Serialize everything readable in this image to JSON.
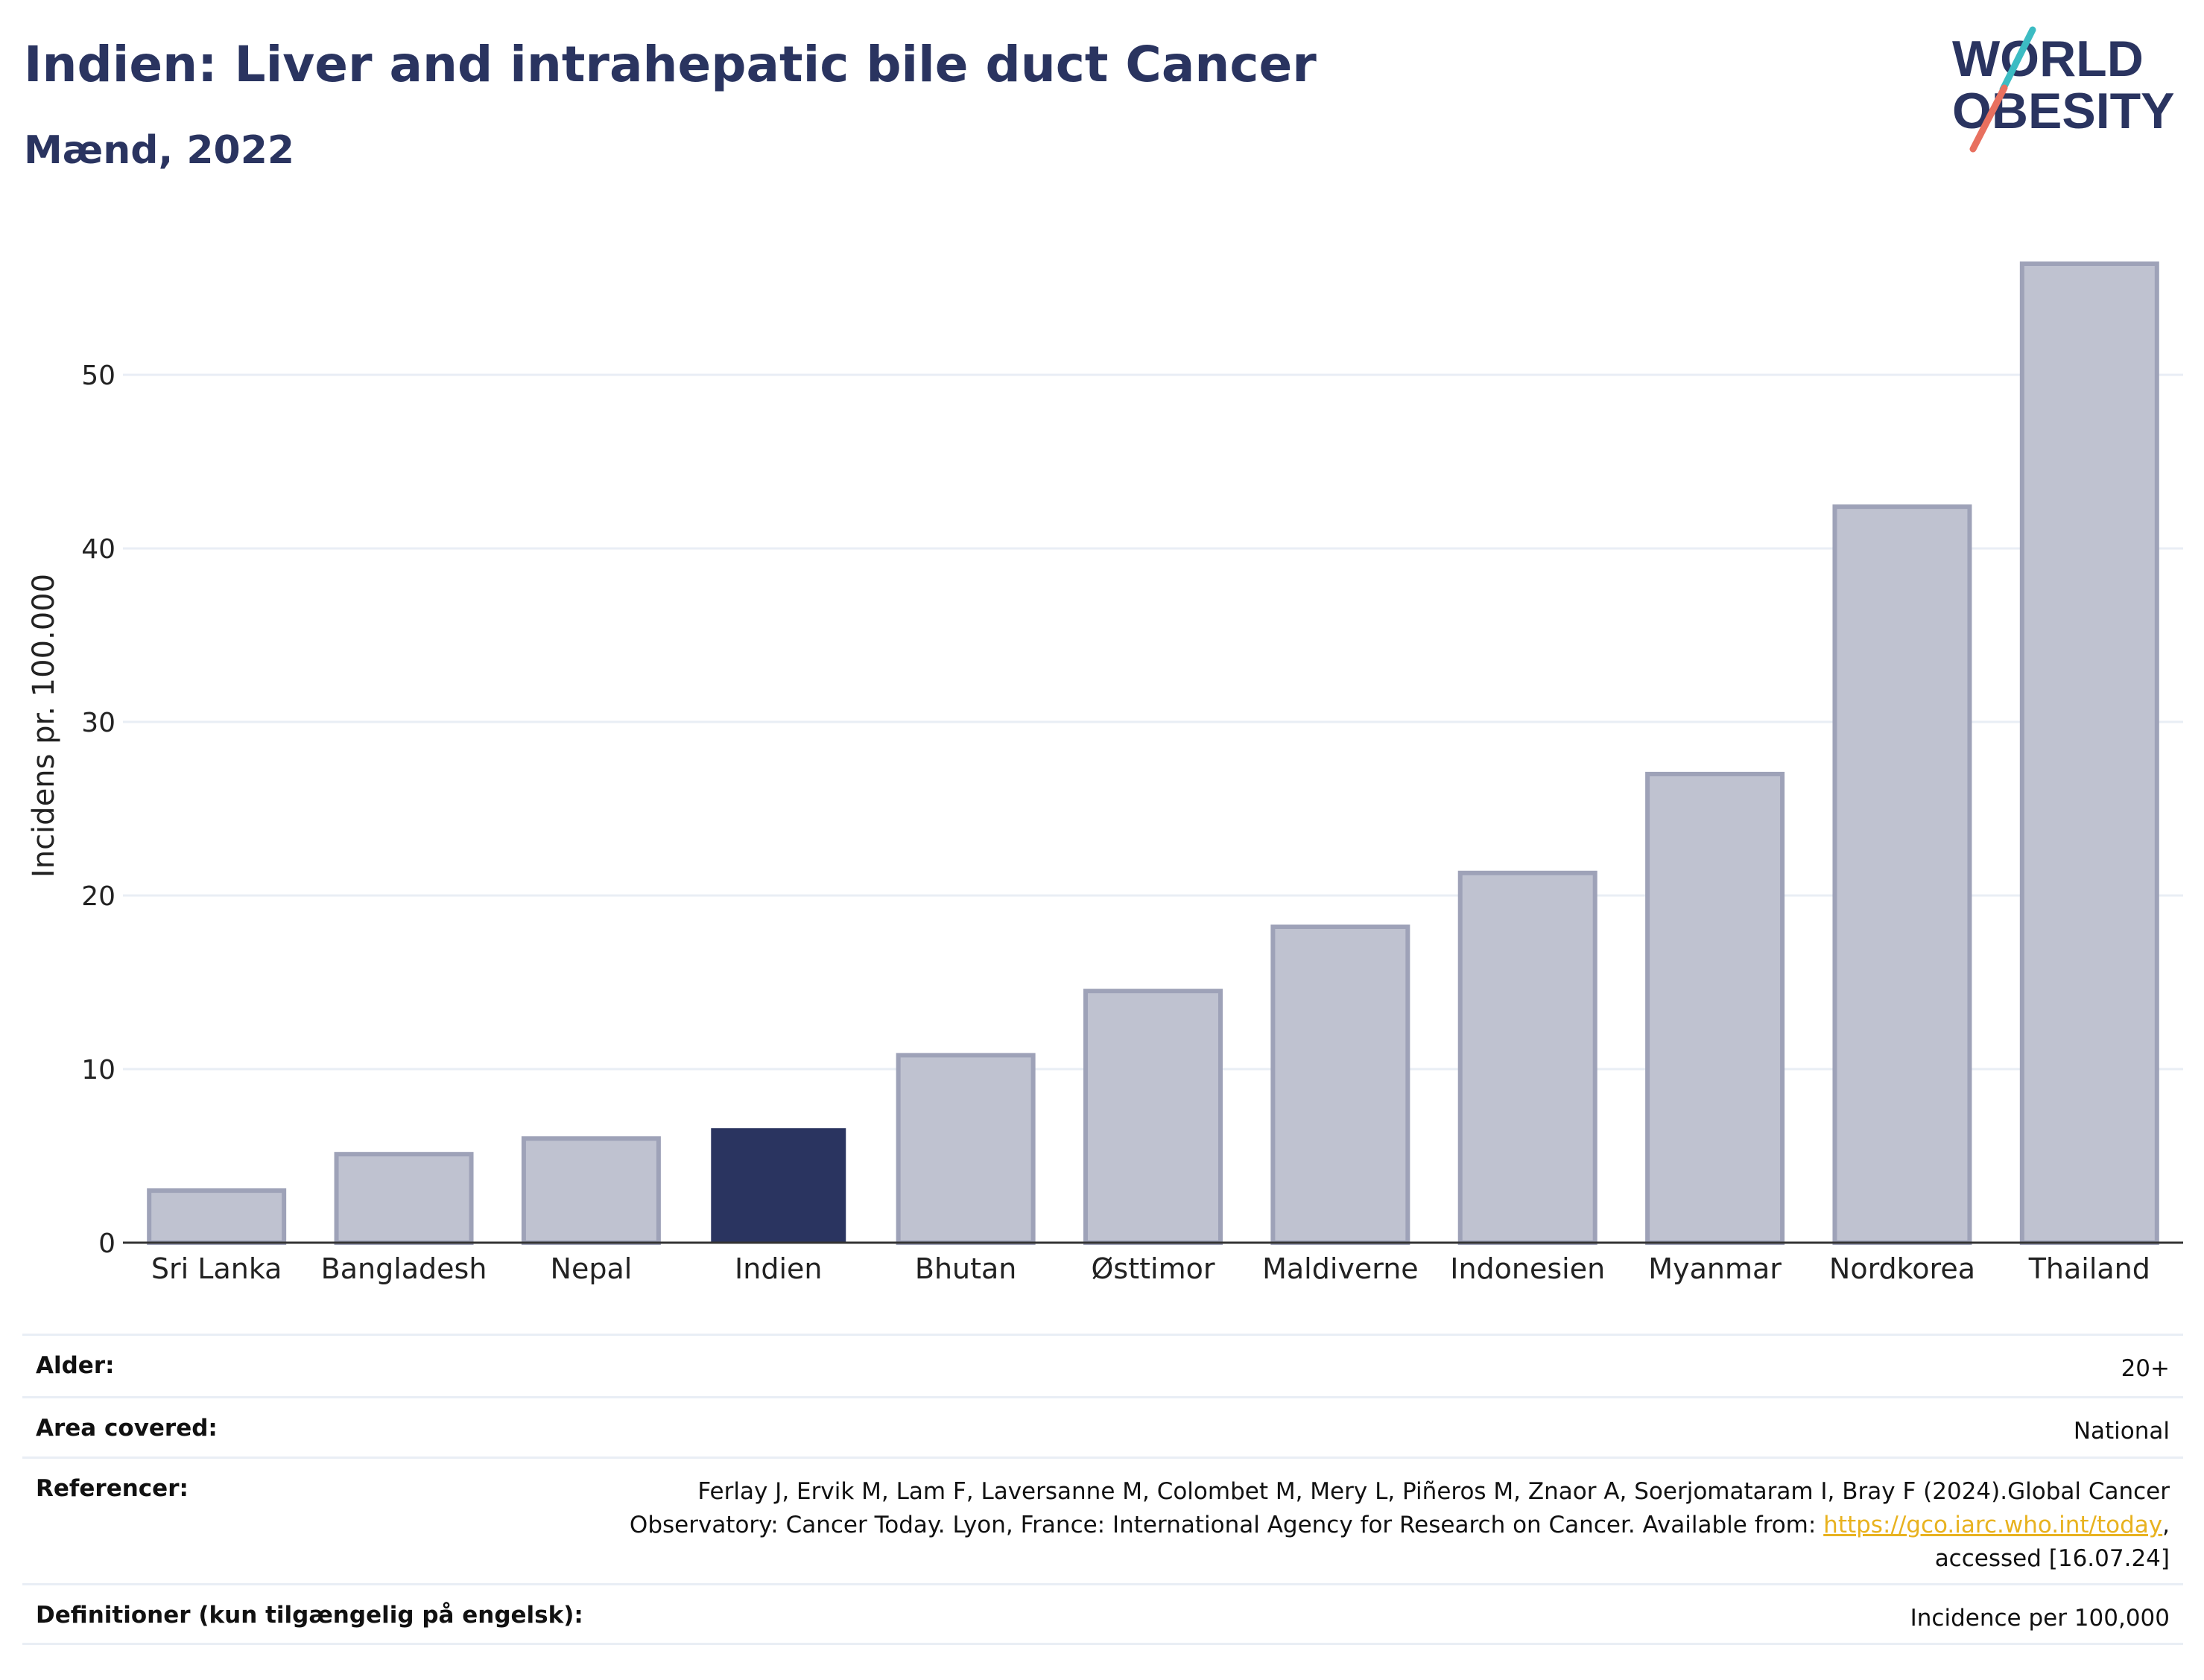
{
  "title": "Indien: Liver and intrahepatic bile duct Cancer",
  "subtitle": "Mænd, 2022",
  "logo": {
    "line1": "WORLD",
    "line2": "OBESITY",
    "colors": {
      "text": "#2a3460",
      "teal": "#3cbcc3",
      "coral": "#e8705f"
    }
  },
  "chart_data": {
    "type": "bar",
    "categories": [
      "Sri Lanka",
      "Bangladesh",
      "Nepal",
      "Indien",
      "Bhutan",
      "Østtimor",
      "Maldiverne",
      "Indonesien",
      "Myanmar",
      "Nordkorea",
      "Thailand"
    ],
    "values": [
      3.0,
      5.1,
      6.0,
      6.6,
      10.8,
      14.5,
      18.2,
      21.3,
      27.0,
      42.4,
      56.4
    ],
    "highlight": "Indien",
    "ylabel": "Incidens pr. 100.000",
    "ylim": [
      0,
      57
    ],
    "yticks": [
      0,
      10,
      20,
      30,
      40,
      50
    ],
    "grid": true,
    "colors": {
      "bar": "#bfc2d0",
      "bar_edge": "#9ea2b8",
      "highlight": "#2a3460",
      "grid": "#e9eef5",
      "axis": "#333333"
    }
  },
  "meta": {
    "age_label": "Alder:",
    "age_value": "20+",
    "area_label": "Area covered:",
    "area_value": "National",
    "ref_label": "Referencer:",
    "ref_line1": "Ferlay J, Ervik M, Lam F, Laversanne M, Colombet M, Mery L, Piñeros M, Znaor A, Soerjomataram I, Bray F (2024).Global Cancer",
    "ref_line2_pre": "Observatory: Cancer Today. Lyon, France: International Agency for Research on Cancer. Available from: ",
    "ref_link": "https://gco.iarc.who.int/today",
    "ref_line2_post": ",",
    "ref_line3": "accessed [16.07.24]",
    "def_label": "Definitioner (kun tilgængelig på engelsk):",
    "def_value": "Incidence per 100,000"
  }
}
